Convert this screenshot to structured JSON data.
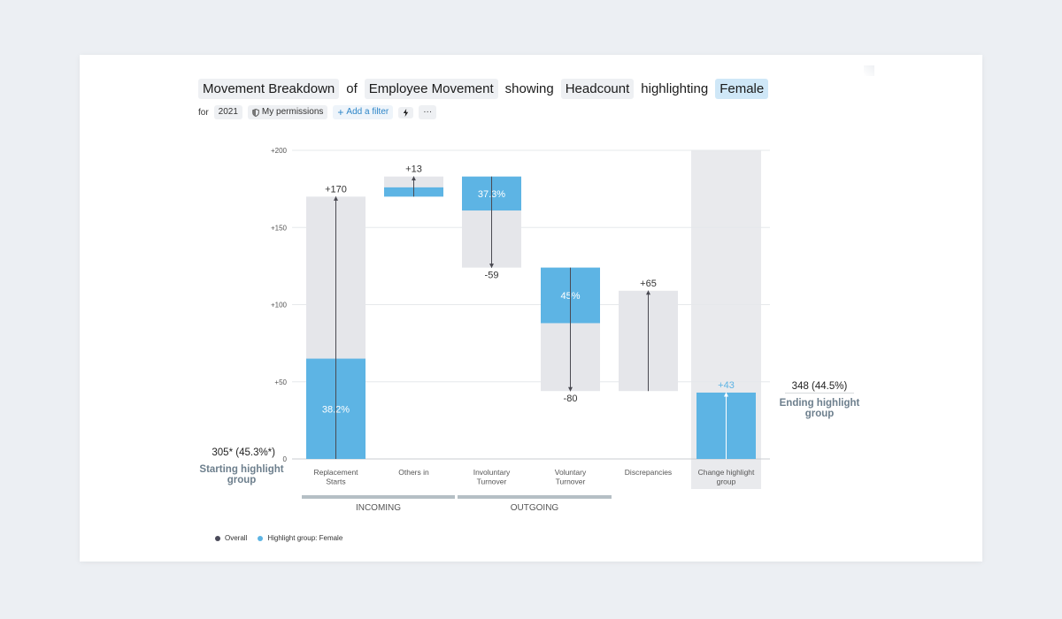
{
  "query": {
    "parts": [
      {
        "text": "Movement Breakdown",
        "style": "pill"
      },
      {
        "text": "of",
        "style": "plain"
      },
      {
        "text": "Employee Movement",
        "style": "pill"
      },
      {
        "text": "showing",
        "style": "plain"
      },
      {
        "text": "Headcount",
        "style": "pill"
      },
      {
        "text": "highlighting",
        "style": "plain"
      },
      {
        "text": "Female",
        "style": "pill-highlight"
      }
    ]
  },
  "filters": {
    "for_label": "for",
    "year": "2021",
    "permissions": "My permissions",
    "add_filter": "Add a filter",
    "more": "···"
  },
  "colors": {
    "overall": "#e5e6ea",
    "highlight": "#5db4e4",
    "highlight_text": "#5db4e4",
    "arrow": "#4a4a52",
    "group_bar": "#b5bfc5"
  },
  "chart_data": {
    "type": "waterfall",
    "ylim": [
      0,
      200
    ],
    "yticks": [
      "0",
      "+50",
      "+100",
      "+150",
      "+200"
    ],
    "start": {
      "value": 0,
      "label": "305* (45.3%*)",
      "caption": "Starting highlight group"
    },
    "end": {
      "label": "348 (44.5%)",
      "caption": "Ending highlight group"
    },
    "steps": [
      {
        "category": "Replacement Starts",
        "base": 0,
        "overall": 170,
        "highlight": 65,
        "highlight_pos": "bottom",
        "delta_label": "+170",
        "pct_label": "38.2%"
      },
      {
        "category": "Others in",
        "base": 170,
        "overall": 13,
        "highlight": 6,
        "highlight_pos": "bottom",
        "delta_label": "+13",
        "pct_label": ""
      },
      {
        "category": "Involuntary Turnover",
        "base": 183,
        "overall": -59,
        "highlight": 22,
        "highlight_pos": "top",
        "delta_label": "-59",
        "pct_label": "37.3%"
      },
      {
        "category": "Voluntary Turnover",
        "base": 124,
        "overall": -80,
        "highlight": 36,
        "highlight_pos": "top",
        "delta_label": "-80",
        "pct_label": "45%"
      },
      {
        "category": "Discrepancies",
        "base": 44,
        "overall": 65,
        "highlight": 0,
        "highlight_pos": "bottom",
        "delta_label": "+65",
        "pct_label": ""
      },
      {
        "category": "Change highlight group",
        "base": 0,
        "overall": 43,
        "highlight": 43,
        "highlight_pos": "bottom",
        "delta_label": "+43",
        "pct_label": "",
        "is_total": true
      }
    ],
    "groups": [
      {
        "name": "INCOMING",
        "from": 0,
        "to": 1
      },
      {
        "name": "OUTGOING",
        "from": 2,
        "to": 3
      }
    ],
    "legend": [
      {
        "name": "Overall",
        "color": "#4a4a5a"
      },
      {
        "name": "Highlight group: Female",
        "color": "#5db4e4"
      }
    ]
  }
}
